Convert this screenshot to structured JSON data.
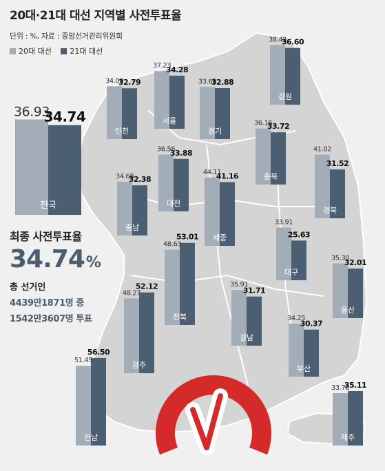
{
  "header": {
    "title": "20대·21대 대선 지역별 사전투표율",
    "unit": "단위 : %, 자료 : 중앙선거관리위원회"
  },
  "legend": [
    {
      "label": "20대 대선",
      "color": "#a3adb8"
    },
    {
      "label": "21대 대선",
      "color": "#4c5f72"
    }
  ],
  "summary": {
    "final_label": "최종 사전투표율",
    "final_value": "34.74",
    "final_unit": "%",
    "voters_label": "총 선거인",
    "voters_total": "4439만1871명 중",
    "voters_cast": "1542만3607명 투표"
  },
  "colors": {
    "background": "#f0f0f0",
    "map_land": "#d4d4d4",
    "map_border": "#ffffff",
    "series_20": "#a3adb8",
    "series_21": "#4c5f72",
    "ballot_mark": "#d42a2a"
  },
  "chart_data": {
    "type": "bar",
    "series": [
      {
        "name": "20대 대선",
        "values": [
          36.93,
          37.23,
          34.09,
          33.65,
          38.42,
          36.56,
          36.16,
          41.02,
          34.68,
          44.11,
          33.91,
          35.3,
          48.63,
          35.91,
          48.27,
          34.25,
          51.45,
          33.78
        ]
      },
      {
        "name": "21대 대선",
        "values": [
          34.74,
          34.28,
          32.79,
          32.88,
          36.6,
          33.88,
          33.72,
          31.52,
          32.38,
          41.16,
          25.63,
          32.01,
          53.01,
          31.71,
          52.12,
          30.37,
          56.5,
          35.11
        ]
      }
    ],
    "categories": [
      "전국",
      "서울",
      "인천",
      "경기",
      "강원",
      "대전",
      "충북",
      "경북",
      "충남",
      "세종",
      "대구",
      "울산",
      "전북",
      "경남",
      "광주",
      "부산",
      "전남",
      "제주"
    ],
    "labels_20": [
      "36.93",
      "37.23",
      "34.09",
      "33.65",
      "38.42",
      "36.56",
      "36.16",
      "41.02",
      "34.68",
      "44.11",
      "33.91",
      "35.30",
      "48.63",
      "35.91",
      "48.27",
      "34.25",
      "51.45",
      "33.78"
    ],
    "labels_21": [
      "34.74",
      "34.28",
      "32.79",
      "32.88",
      "36.60",
      "33.88",
      "33.72",
      "31.52",
      "32.38",
      "41.16",
      "25.63",
      "32.01",
      "53.01",
      "31.71",
      "52.12",
      "30.37",
      "56.50",
      "35.11"
    ]
  }
}
